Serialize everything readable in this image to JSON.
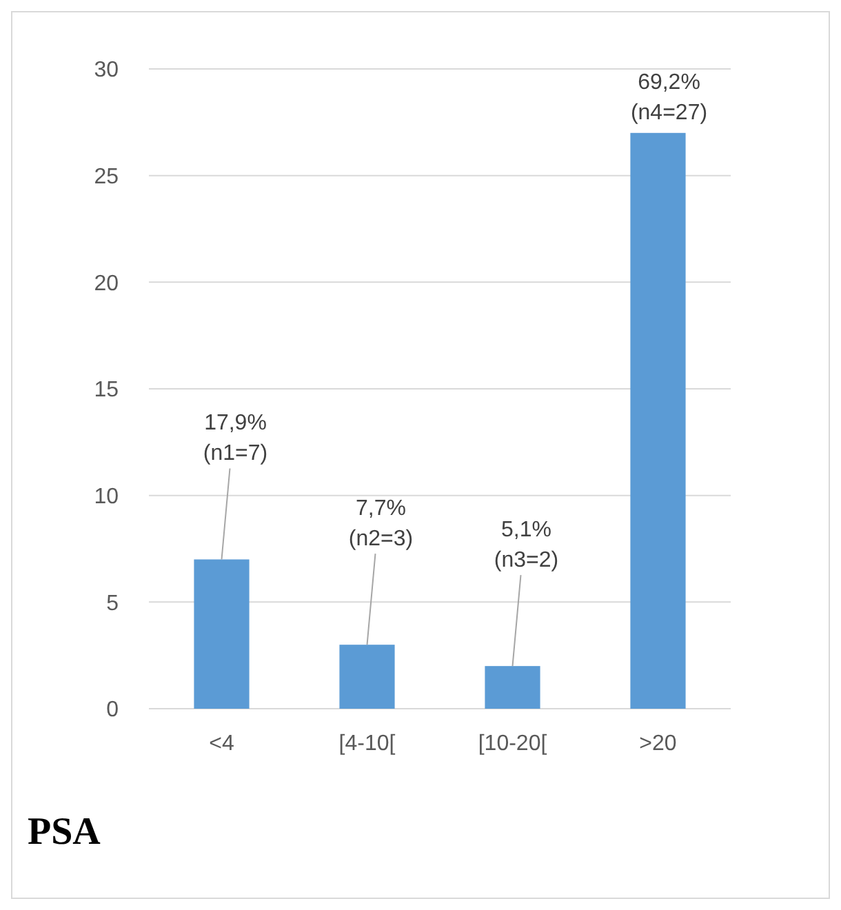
{
  "chart_data": {
    "type": "bar",
    "title": "PSA",
    "categories": [
      "<4",
      "[4-10[",
      "[10-20[",
      ">20"
    ],
    "values": [
      7,
      3,
      2,
      27
    ],
    "color": "#5b9bd5",
    "ylim": [
      0,
      30
    ],
    "yticks": [
      0,
      5,
      10,
      15,
      20,
      25,
      30
    ],
    "grid": "y",
    "value_labels": [
      "17,9%\n(n1=7)",
      "7,7%\n(n2=3)",
      "5,1%\n(n3=2)",
      "69,2%\n(n4=27)"
    ]
  }
}
